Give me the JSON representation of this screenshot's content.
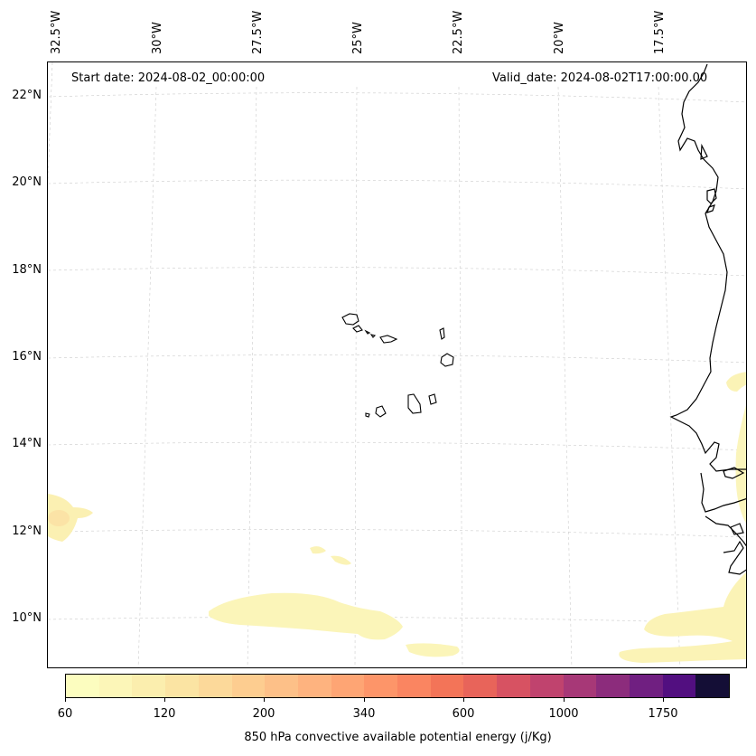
{
  "map": {
    "longitude_labels": [
      "32.5°W",
      "30°W",
      "27.5°W",
      "25°W",
      "22.5°W",
      "20°W",
      "17.5°W"
    ],
    "latitude_labels": [
      "22°N",
      "20°N",
      "18°N",
      "16°N",
      "14°N",
      "12°N",
      "10°N"
    ],
    "start_date": "Start date: 2024-08-02_00:00:00",
    "valid_date": "Valid_date: 2024-08-02T17:00:00.00"
  },
  "colorbar": {
    "tick_labels": [
      "60",
      "120",
      "200",
      "340",
      "600",
      "1000",
      "1750"
    ],
    "label": "850 hPa convective available potential energy (j/Kg)",
    "colors": [
      "#fcfdbf",
      "#fcf6b8",
      "#fbeeae",
      "#fbe4a3",
      "#fcd99a",
      "#fdcd90",
      "#fdc088",
      "#feb37f",
      "#fea574",
      "#fd9569",
      "#fa8561",
      "#f37458",
      "#e8645a",
      "#d75262",
      "#c0436e",
      "#a73877",
      "#8c2c7c",
      "#701f81",
      "#520f80",
      "#140e36"
    ]
  }
}
